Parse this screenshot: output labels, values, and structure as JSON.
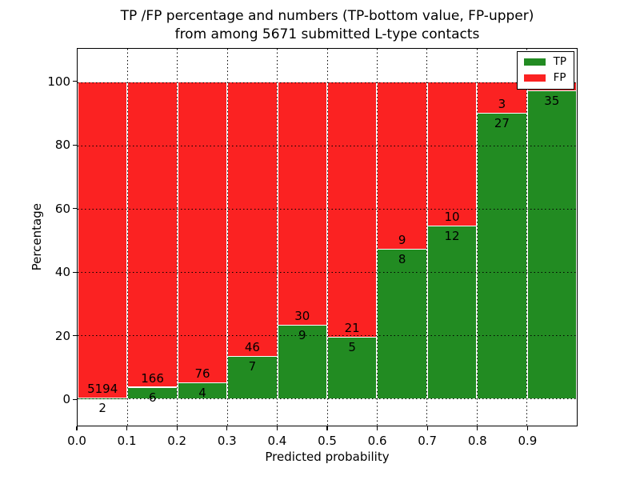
{
  "figure": {
    "title_line1": "TP /FP percentage and numbers (TP-bottom value, FP-upper)",
    "title_line2": "from among 5671 submitted L-type contacts"
  },
  "chart_data": {
    "type": "bar",
    "stacked": true,
    "orientation": "vertical",
    "title": "TP /FP percentage and numbers (TP-bottom value, FP-upper)\nfrom among 5671 submitted L-type contacts",
    "xlabel": "Predicted probability",
    "ylabel": "Percentage",
    "xlim": [
      0.0,
      1.0
    ],
    "ylim": [
      -8.5,
      110.5
    ],
    "grid": true,
    "x_ticks": [
      {
        "value": 0.0,
        "label": "0.0"
      },
      {
        "value": 0.1,
        "label": "0.1"
      },
      {
        "value": 0.2,
        "label": "0.2"
      },
      {
        "value": 0.3,
        "label": "0.3"
      },
      {
        "value": 0.4,
        "label": "0.4"
      },
      {
        "value": 0.5,
        "label": "0.5"
      },
      {
        "value": 0.6,
        "label": "0.6"
      },
      {
        "value": 0.7,
        "label": "0.7"
      },
      {
        "value": 0.8,
        "label": "0.8"
      },
      {
        "value": 0.9,
        "label": "0.9"
      }
    ],
    "y_ticks": [
      {
        "value": 0,
        "label": "0"
      },
      {
        "value": 20,
        "label": "20"
      },
      {
        "value": 40,
        "label": "40"
      },
      {
        "value": 60,
        "label": "60"
      },
      {
        "value": 80,
        "label": "80"
      },
      {
        "value": 100,
        "label": "100"
      }
    ],
    "legend": {
      "position": "upper right",
      "entries": [
        {
          "label": "TP",
          "color": "#228b22"
        },
        {
          "label": "FP",
          "color": "#fb2222"
        }
      ]
    },
    "colors": {
      "tp": "#228b22",
      "fp": "#fb2222"
    },
    "bins": [
      {
        "x_range": [
          0.0,
          0.1
        ],
        "tp": 2,
        "fp": 5194,
        "tp_pct": 0.04
      },
      {
        "x_range": [
          0.1,
          0.2
        ],
        "tp": 6,
        "fp": 166,
        "tp_pct": 3.5
      },
      {
        "x_range": [
          0.2,
          0.3
        ],
        "tp": 4,
        "fp": 76,
        "tp_pct": 5.0
      },
      {
        "x_range": [
          0.3,
          0.4
        ],
        "tp": 7,
        "fp": 46,
        "tp_pct": 13.2
      },
      {
        "x_range": [
          0.4,
          0.5
        ],
        "tp": 9,
        "fp": 30,
        "tp_pct": 23.1
      },
      {
        "x_range": [
          0.5,
          0.6
        ],
        "tp": 5,
        "fp": 21,
        "tp_pct": 19.2
      },
      {
        "x_range": [
          0.6,
          0.7
        ],
        "tp": 8,
        "fp": 9,
        "tp_pct": 47.1
      },
      {
        "x_range": [
          0.7,
          0.8
        ],
        "tp": 12,
        "fp": 10,
        "tp_pct": 54.5
      },
      {
        "x_range": [
          0.8,
          0.9
        ],
        "tp": 27,
        "fp": 3,
        "tp_pct": 90.0
      },
      {
        "x_range": [
          0.9,
          1.0
        ],
        "tp": 35,
        "fp": null,
        "tp_pct": 97.2
      }
    ]
  }
}
